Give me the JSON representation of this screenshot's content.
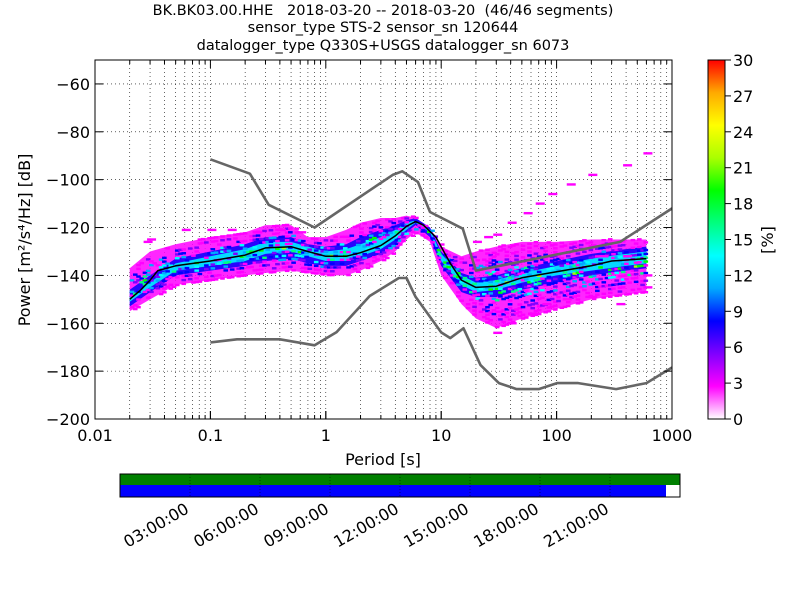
{
  "title": {
    "line1": "BK.BK03.00.HHE   2018-03-20 -- 2018-03-20  (46/46 segments)",
    "line2": "sensor_type STS-2 sensor_sn 120644",
    "line3": "datalogger_type Q330S+USGS datalogger_sn 6073"
  },
  "chart_data": {
    "type": "heatmap",
    "xlabel": "Period [s]",
    "ylabel": "Power [m²/s⁴/Hz] [dB]",
    "x_scale": "log",
    "xlim": [
      0.01,
      1000
    ],
    "ylim": [
      -200,
      -50
    ],
    "x_ticks": [
      {
        "value": 0.01,
        "label": "0.01"
      },
      {
        "value": 0.1,
        "label": "0.1"
      },
      {
        "value": 1,
        "label": "1"
      },
      {
        "value": 10,
        "label": "10"
      },
      {
        "value": 100,
        "label": "100"
      },
      {
        "value": 1000,
        "label": "1000"
      }
    ],
    "y_ticks": [
      {
        "value": -60,
        "label": "−60"
      },
      {
        "value": -80,
        "label": "−80"
      },
      {
        "value": -100,
        "label": "−100"
      },
      {
        "value": -120,
        "label": "−120"
      },
      {
        "value": -140,
        "label": "−140"
      },
      {
        "value": -160,
        "label": "−160"
      },
      {
        "value": -180,
        "label": "−180"
      },
      {
        "value": -200,
        "label": "−200"
      }
    ],
    "grid": true,
    "colorbar": {
      "label": "[%]",
      "range": [
        0,
        30
      ],
      "ticks": [
        {
          "value": 0,
          "label": "0"
        },
        {
          "value": 3,
          "label": "3"
        },
        {
          "value": 6,
          "label": "6"
        },
        {
          "value": 9,
          "label": "9"
        },
        {
          "value": 12,
          "label": "12"
        },
        {
          "value": 15,
          "label": "15"
        },
        {
          "value": 18,
          "label": "18"
        },
        {
          "value": 21,
          "label": "21"
        },
        {
          "value": 24,
          "label": "24"
        },
        {
          "value": 27,
          "label": "27"
        },
        {
          "value": 30,
          "label": "30"
        }
      ],
      "colors": [
        "#ffffff",
        "#ff00ff",
        "#8000ff",
        "#0000ff",
        "#00aaff",
        "#00ffff",
        "#00ff80",
        "#00ff00",
        "#aaff00",
        "#ffff00",
        "#ffaa00",
        "#ff0000"
      ]
    },
    "series": [
      {
        "role": "new high noise model",
        "color": "#666666",
        "points": [
          [
            0.1,
            -91.5
          ],
          [
            0.22,
            -97.5
          ],
          [
            0.32,
            -110.5
          ],
          [
            0.8,
            -120.0
          ],
          [
            3.8,
            -98.0
          ],
          [
            4.6,
            -96.5
          ],
          [
            6.3,
            -101.0
          ],
          [
            8.0,
            -113.5
          ],
          [
            15.4,
            -120.5
          ],
          [
            20.0,
            -138.0
          ],
          [
            354.8,
            -126.0
          ],
          [
            1000,
            -112.0
          ]
        ]
      },
      {
        "role": "new low noise model",
        "color": "#666666",
        "points": [
          [
            0.1,
            -168.0
          ],
          [
            0.17,
            -166.7
          ],
          [
            0.4,
            -166.7
          ],
          [
            0.8,
            -169.2
          ],
          [
            1.24,
            -163.7
          ],
          [
            2.4,
            -148.6
          ],
          [
            4.3,
            -141.1
          ],
          [
            5.0,
            -141.1
          ],
          [
            6.0,
            -149.0
          ],
          [
            10.0,
            -163.8
          ],
          [
            12.0,
            -166.2
          ],
          [
            15.6,
            -162.1
          ],
          [
            21.9,
            -177.5
          ],
          [
            31.6,
            -185.0
          ],
          [
            45.0,
            -187.5
          ],
          [
            70.0,
            -187.5
          ],
          [
            101.0,
            -185.0
          ],
          [
            154.0,
            -185.0
          ],
          [
            328.0,
            -187.5
          ],
          [
            600.0,
            -185.0
          ],
          [
            1000.0,
            -178.5
          ]
        ]
      },
      {
        "role": "mode",
        "color": "#000000",
        "points": [
          [
            0.02,
            -150.0
          ],
          [
            0.025,
            -146.0
          ],
          [
            0.03,
            -142.0
          ],
          [
            0.035,
            -138.0
          ],
          [
            0.05,
            -136.0
          ],
          [
            0.1,
            -134.0
          ],
          [
            0.2,
            -131.5
          ],
          [
            0.3,
            -128.5
          ],
          [
            0.5,
            -128.0
          ],
          [
            0.7,
            -130.0
          ],
          [
            1.0,
            -132.0
          ],
          [
            1.5,
            -132.0
          ],
          [
            2.0,
            -130.5
          ],
          [
            3.0,
            -127.5
          ],
          [
            4.0,
            -123.5
          ],
          [
            5.0,
            -119.5
          ],
          [
            6.0,
            -117.5
          ],
          [
            7.0,
            -119.0
          ],
          [
            9.0,
            -124.0
          ],
          [
            12.0,
            -135.0
          ],
          [
            15.0,
            -142.0
          ],
          [
            20.0,
            -145.0
          ],
          [
            30.0,
            -144.5
          ],
          [
            50.0,
            -141.0
          ],
          [
            100.0,
            -138.5
          ],
          [
            200.0,
            -136.0
          ],
          [
            300.0,
            -134.0
          ],
          [
            600.0,
            -133.0
          ]
        ]
      }
    ],
    "density_bands": [
      {
        "level": 2,
        "points": [
          [
            0.02,
            -137
          ],
          [
            0.03,
            -130
          ],
          [
            0.05,
            -127
          ],
          [
            0.1,
            -124
          ],
          [
            0.2,
            -122
          ],
          [
            0.3,
            -119
          ],
          [
            0.5,
            -119
          ],
          [
            0.7,
            -124
          ],
          [
            1.0,
            -124
          ],
          [
            1.5,
            -121
          ],
          [
            2.0,
            -118
          ],
          [
            3.0,
            -116
          ],
          [
            4.0,
            -116
          ],
          [
            5.0,
            -115
          ],
          [
            6.0,
            -116
          ],
          [
            8.0,
            -120
          ],
          [
            10.0,
            -128
          ],
          [
            15.0,
            -132
          ],
          [
            20.0,
            -130
          ],
          [
            30.0,
            -128
          ],
          [
            50.0,
            -126
          ],
          [
            100.0,
            -126
          ],
          [
            200.0,
            -125
          ],
          [
            400.0,
            -125
          ],
          [
            600.0,
            -125
          ]
        ],
        "bottom": [
          [
            0.02,
            -155
          ],
          [
            0.03,
            -150
          ],
          [
            0.05,
            -144
          ],
          [
            0.1,
            -142
          ],
          [
            0.2,
            -140
          ],
          [
            0.3,
            -139
          ],
          [
            0.5,
            -138
          ],
          [
            0.7,
            -139
          ],
          [
            1.0,
            -140
          ],
          [
            1.5,
            -140
          ],
          [
            2.0,
            -138
          ],
          [
            3.0,
            -134
          ],
          [
            4.0,
            -130
          ],
          [
            5.0,
            -125
          ],
          [
            6.0,
            -122
          ],
          [
            8.0,
            -126
          ],
          [
            10.0,
            -140
          ],
          [
            15.0,
            -152
          ],
          [
            20.0,
            -158
          ],
          [
            30.0,
            -162
          ],
          [
            50.0,
            -158
          ],
          [
            100.0,
            -154
          ],
          [
            200.0,
            -150
          ],
          [
            400.0,
            -148
          ],
          [
            600.0,
            -147
          ]
        ]
      },
      {
        "level": 9,
        "points": [
          [
            0.02,
            -146
          ],
          [
            0.03,
            -140
          ],
          [
            0.05,
            -133
          ],
          [
            0.1,
            -130
          ],
          [
            0.2,
            -127
          ],
          [
            0.3,
            -124
          ],
          [
            0.5,
            -124
          ],
          [
            0.7,
            -127
          ],
          [
            1.0,
            -128
          ],
          [
            1.5,
            -127
          ],
          [
            2.0,
            -124
          ],
          [
            3.0,
            -121
          ],
          [
            4.0,
            -119
          ],
          [
            5.0,
            -117
          ],
          [
            6.0,
            -116
          ],
          [
            8.0,
            -120
          ],
          [
            10.0,
            -130
          ],
          [
            15.0,
            -139
          ],
          [
            20.0,
            -141
          ],
          [
            30.0,
            -140
          ],
          [
            50.0,
            -137
          ],
          [
            100.0,
            -134
          ],
          [
            200.0,
            -131
          ],
          [
            400.0,
            -129
          ],
          [
            600.0,
            -128
          ]
        ],
        "bottom": [
          [
            0.02,
            -153
          ],
          [
            0.03,
            -147
          ],
          [
            0.05,
            -140
          ],
          [
            0.1,
            -138
          ],
          [
            0.2,
            -136
          ],
          [
            0.3,
            -134
          ],
          [
            0.5,
            -133
          ],
          [
            0.7,
            -135
          ],
          [
            1.0,
            -136
          ],
          [
            1.5,
            -136
          ],
          [
            2.0,
            -134
          ],
          [
            3.0,
            -131
          ],
          [
            4.0,
            -127
          ],
          [
            5.0,
            -122
          ],
          [
            6.0,
            -119
          ],
          [
            8.0,
            -124
          ],
          [
            10.0,
            -136
          ],
          [
            15.0,
            -147
          ],
          [
            20.0,
            -149
          ],
          [
            30.0,
            -149
          ],
          [
            50.0,
            -146
          ],
          [
            100.0,
            -143
          ],
          [
            200.0,
            -140
          ],
          [
            400.0,
            -138
          ],
          [
            600.0,
            -137
          ]
        ]
      },
      {
        "level": 14,
        "points": [
          [
            0.02,
            -149
          ],
          [
            0.03,
            -143
          ],
          [
            0.05,
            -135
          ],
          [
            0.1,
            -132
          ],
          [
            0.2,
            -129
          ],
          [
            0.3,
            -126
          ],
          [
            0.5,
            -126
          ],
          [
            0.7,
            -128
          ],
          [
            1.0,
            -130
          ],
          [
            1.5,
            -129
          ],
          [
            2.0,
            -127
          ],
          [
            3.0,
            -124
          ],
          [
            4.0,
            -121
          ],
          [
            5.0,
            -118
          ],
          [
            6.0,
            -117
          ],
          [
            8.0,
            -121
          ],
          [
            10.0,
            -131
          ],
          [
            15.0,
            -140
          ],
          [
            20.0,
            -143
          ],
          [
            30.0,
            -142
          ],
          [
            50.0,
            -139
          ],
          [
            100.0,
            -136
          ],
          [
            200.0,
            -133
          ],
          [
            400.0,
            -131
          ],
          [
            600.0,
            -130
          ]
        ],
        "bottom": [
          [
            0.02,
            -151
          ],
          [
            0.03,
            -145
          ],
          [
            0.05,
            -138
          ],
          [
            0.1,
            -136
          ],
          [
            0.2,
            -134
          ],
          [
            0.3,
            -131
          ],
          [
            0.5,
            -130
          ],
          [
            0.7,
            -132
          ],
          [
            1.0,
            -134
          ],
          [
            1.5,
            -134
          ],
          [
            2.0,
            -132
          ],
          [
            3.0,
            -129
          ],
          [
            4.0,
            -125
          ],
          [
            5.0,
            -121
          ],
          [
            6.0,
            -118
          ],
          [
            8.0,
            -122
          ],
          [
            10.0,
            -134
          ],
          [
            15.0,
            -144
          ],
          [
            20.0,
            -147
          ],
          [
            30.0,
            -146
          ],
          [
            50.0,
            -143
          ],
          [
            100.0,
            -140
          ],
          [
            200.0,
            -138
          ],
          [
            400.0,
            -136
          ],
          [
            600.0,
            -135
          ]
        ]
      }
    ],
    "scatter_outliers": [
      [
        0.028,
        -126
      ],
      [
        0.03,
        -125
      ],
      [
        0.06,
        -121
      ],
      [
        0.1,
        -121
      ],
      [
        0.15,
        -121
      ],
      [
        0.25,
        -122
      ],
      [
        0.4,
        -121
      ],
      [
        0.6,
        -122
      ],
      [
        20,
        -126
      ],
      [
        25,
        -124
      ],
      [
        30,
        -123
      ],
      [
        40,
        -118
      ],
      [
        55,
        -114
      ],
      [
        70,
        -110
      ],
      [
        90,
        -106
      ],
      [
        130,
        -102
      ],
      [
        200,
        -98
      ],
      [
        400,
        -94
      ],
      [
        600,
        -89
      ],
      [
        30,
        -164
      ],
      [
        40,
        -160
      ],
      [
        60,
        -156
      ],
      [
        80,
        -152
      ],
      [
        120,
        -150
      ],
      [
        200,
        -149
      ],
      [
        350,
        -152
      ],
      [
        600,
        -145
      ],
      [
        250,
        -132
      ],
      [
        400,
        -132
      ],
      [
        600,
        -140
      ]
    ]
  },
  "timebar": {
    "tick_labels": [
      "03:00:00",
      "06:00:00",
      "09:00:00",
      "12:00:00",
      "15:00:00",
      "18:00:00",
      "21:00:00"
    ],
    "tick_fractions": [
      0.125,
      0.25,
      0.375,
      0.5,
      0.625,
      0.75,
      0.875
    ],
    "coverage_fraction": 0.975,
    "top_color": "#008000",
    "bottom_color": "#0000ff"
  }
}
